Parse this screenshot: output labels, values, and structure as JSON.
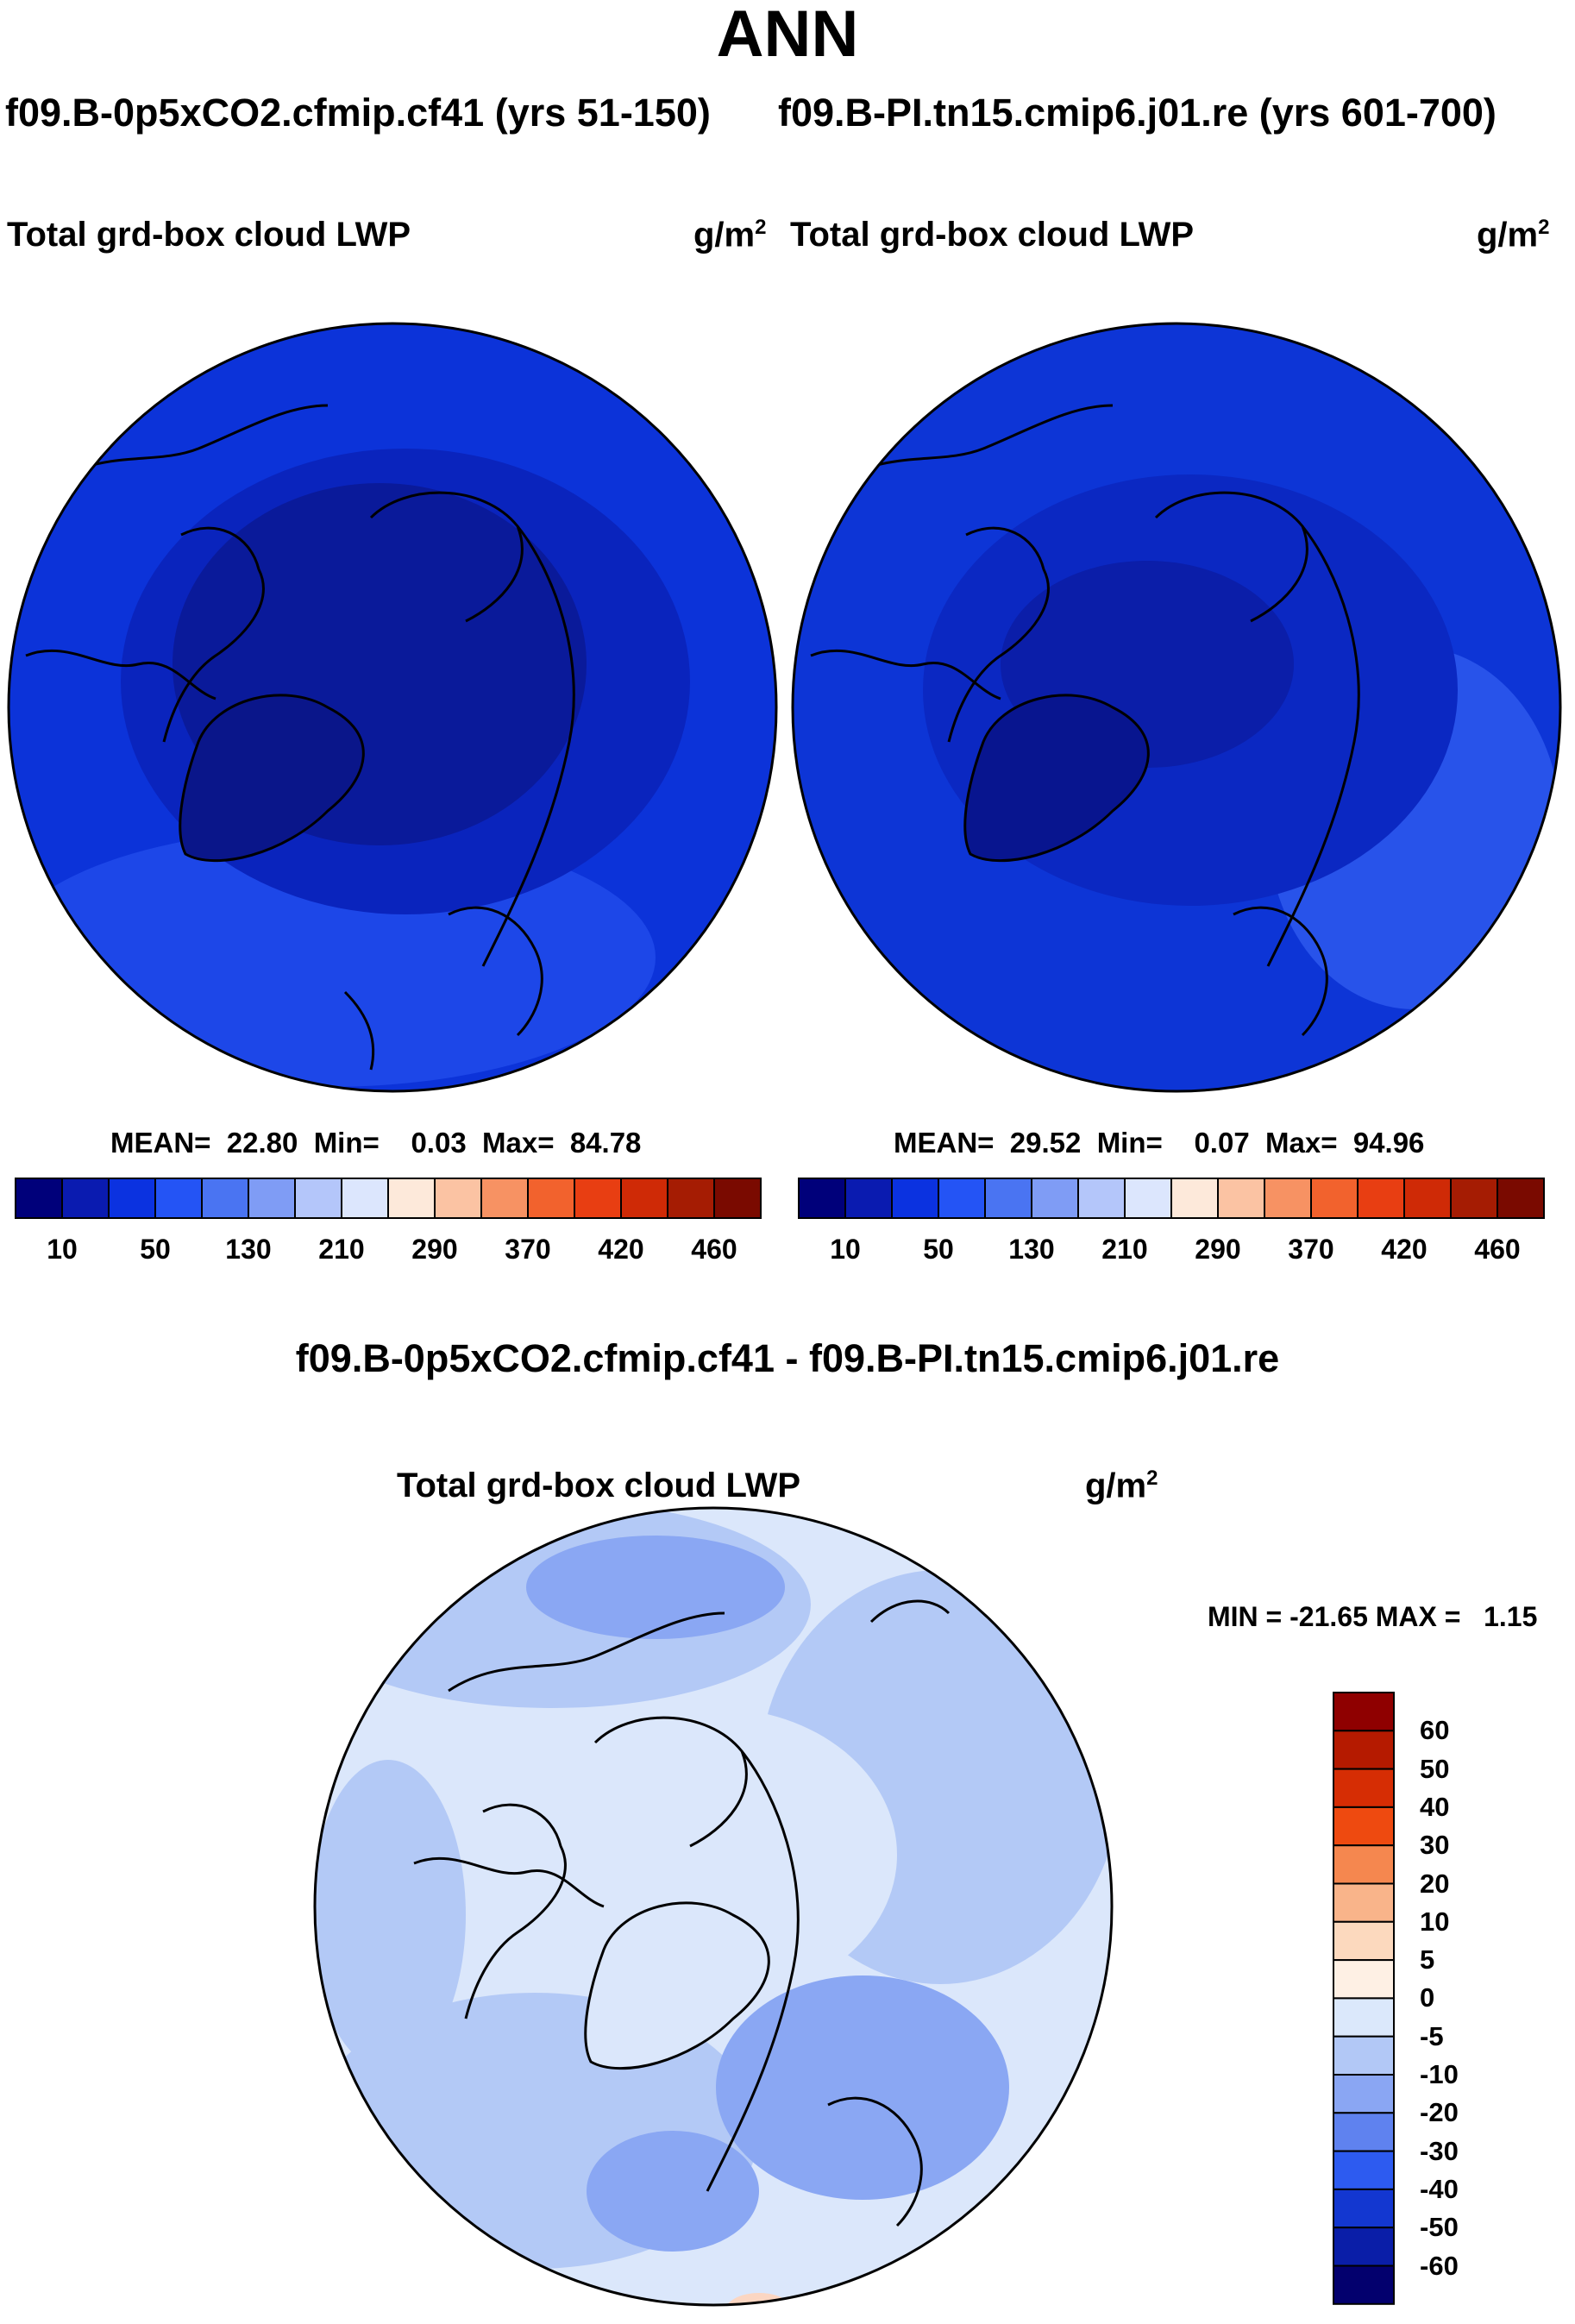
{
  "page_title": "ANN",
  "panel_top_left": {
    "case": "f09.B-0p5xCO2.cfmip.cf41 (yrs 51-150)",
    "variable": "Total grd-box cloud LWP",
    "units": "g/m",
    "units_sup": "2",
    "stats": "MEAN=  22.80  Min=    0.03  Max=  84.78"
  },
  "panel_top_right": {
    "case": "f09.B-PI.tn15.cmip6.j01.re (yrs 601-700)",
    "variable": "Total grd-box cloud LWP",
    "units": "g/m",
    "units_sup": "2",
    "stats": "MEAN=  29.52  Min=    0.07  Max=  94.96"
  },
  "horizontal_colorbar": {
    "labels": [
      "10",
      "50",
      "130",
      "210",
      "290",
      "370",
      "420",
      "460"
    ],
    "colors": [
      "#00007a",
      "#0a1bb0",
      "#0b32e0",
      "#2454f5",
      "#4a74f2",
      "#7f9cf5",
      "#b4c6fa",
      "#dce6fd",
      "#fde9da",
      "#fbc3a3",
      "#f79263",
      "#f2622d",
      "#e83e12",
      "#cf2a06",
      "#a51c03",
      "#7a0a00"
    ]
  },
  "difference_panel": {
    "title": "f09.B-0p5xCO2.cfmip.cf41 - f09.B-PI.tn15.cmip6.j01.re",
    "variable": "Total grd-box cloud LWP",
    "units": "g/m",
    "units_sup": "2",
    "stats": "MIN = -21.65 MAX =   1.15"
  },
  "vertical_colorbar": {
    "labels": [
      "60",
      "50",
      "40",
      "30",
      "20",
      "10",
      "5",
      "0",
      "-5",
      "-10",
      "-20",
      "-30",
      "-40",
      "-50",
      "-60"
    ],
    "colors": [
      "#8f0000",
      "#b51a00",
      "#d62d04",
      "#ee4a10",
      "#f5874f",
      "#f9b48a",
      "#fcd9be",
      "#fef0e4",
      "#dbe8fb",
      "#b2c8f6",
      "#8aa6f3",
      "#5f82ef",
      "#2d5bf0",
      "#1337d0",
      "#0a1ea8",
      "#03006e"
    ]
  },
  "map_colors": {
    "top_left": {
      "base": "#0c33d9",
      "mid": "#0a24bd",
      "deep": "#0a1a9a",
      "greenland": "#0a168a",
      "light": "#1d47e8"
    },
    "top_right": {
      "base": "#0d35d6",
      "mid": "#0b28c2",
      "deep": "#0b1ea9",
      "greenland": "#08158f",
      "light": "#2853ea"
    },
    "difference": {
      "base": "#dbe7fb",
      "mid": "#b3c9f6",
      "strong": "#8aa7f3",
      "warm": "#fbd6c2"
    }
  }
}
